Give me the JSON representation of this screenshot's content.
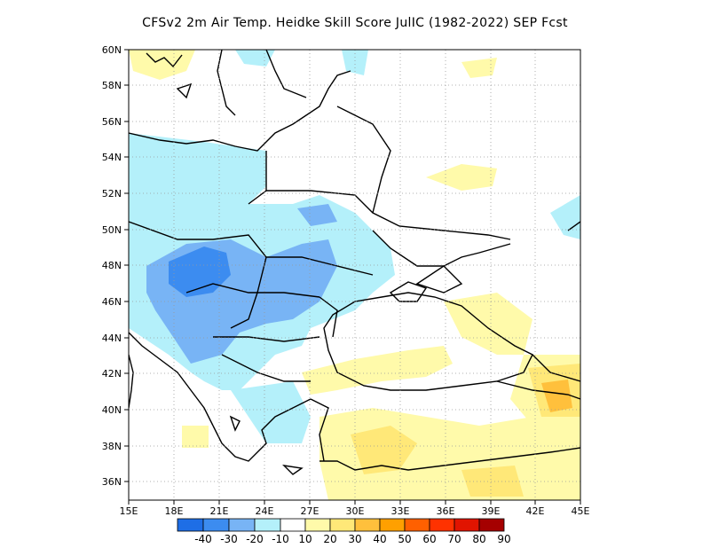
{
  "title": "CFSv2  2m Air Temp. Heidke Skill Score JulIC (1982-2022) SEP Fcst",
  "map": {
    "lon_ticks": [
      "15E",
      "18E",
      "21E",
      "24E",
      "27E",
      "30E",
      "33E",
      "36E",
      "39E",
      "42E",
      "45E"
    ],
    "lat_ticks": [
      "60N",
      "58N",
      "56N",
      "54N",
      "52N",
      "50N",
      "48N",
      "46N",
      "44N",
      "42N",
      "40N",
      "38N",
      "36N"
    ],
    "lon_range": [
      15,
      45
    ],
    "lat_range": [
      35,
      60
    ],
    "grid": "dotted"
  },
  "colorbar": {
    "labels": [
      "-40",
      "-30",
      "-20",
      "-10",
      "10",
      "20",
      "30",
      "40",
      "50",
      "60",
      "70",
      "80",
      "90"
    ],
    "colors": [
      "#1e6ee6",
      "#3c8cf0",
      "#78b4f5",
      "#b4f0fa",
      "#ffffff",
      "#fffaaa",
      "#ffe878",
      "#ffc03c",
      "#ffa000",
      "#ff6000",
      "#ff3200",
      "#e11400",
      "#a50000"
    ]
  }
}
